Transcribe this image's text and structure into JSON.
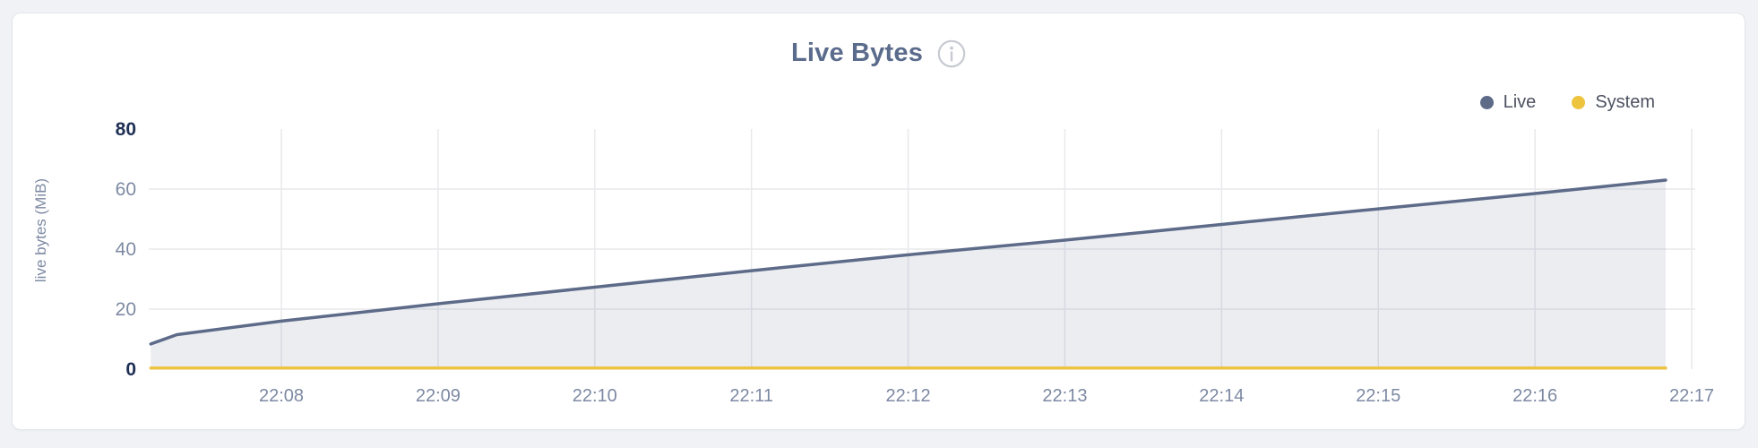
{
  "header": {
    "title": "Live Bytes"
  },
  "legend": {
    "items": [
      {
        "label": "Live",
        "color": "#5d6b89"
      },
      {
        "label": "System",
        "color": "#eec43e"
      }
    ]
  },
  "colors": {
    "page_background": "#f0f2f6",
    "card_background": "#ffffff",
    "card_border": "#e3e5ea",
    "title": "#5b6b8c",
    "info_icon": "#c7cad1"
  },
  "chart_data": {
    "type": "area",
    "title": "Live Bytes",
    "xlabel": "",
    "ylabel": "live bytes (MiB)",
    "ylim": [
      0,
      80
    ],
    "y_ticks": [
      0,
      20,
      40,
      60,
      80
    ],
    "y_ticks_emphasized": [
      0,
      80
    ],
    "x_ticks": [
      "22:08",
      "22:09",
      "22:10",
      "22:11",
      "22:12",
      "22:13",
      "22:14",
      "22:15",
      "22:16",
      "22:17"
    ],
    "grid": true,
    "grid_color": "#e8e9ec",
    "tick_colors": {
      "normal": "#7d89a3",
      "strong": "#1f3055"
    },
    "legend_position": "top-right",
    "series": [
      {
        "name": "Live",
        "color": "#5d6b89",
        "area_fill": true,
        "points": [
          [
            "22:07:10",
            8.4
          ],
          [
            "22:07:20",
            11.5
          ],
          [
            "22:08:00",
            16.0
          ],
          [
            "22:09:00",
            21.8
          ],
          [
            "22:10:00",
            27.3
          ],
          [
            "22:11:00",
            32.8
          ],
          [
            "22:12:00",
            38.1
          ],
          [
            "22:13:00",
            43.0
          ],
          [
            "22:14:00",
            48.2
          ],
          [
            "22:15:00",
            53.4
          ],
          [
            "22:16:00",
            58.5
          ],
          [
            "22:16:50",
            63.0
          ]
        ]
      },
      {
        "name": "System",
        "color": "#edc343",
        "area_fill": false,
        "points": [
          [
            "22:07:10",
            0.4
          ],
          [
            "22:16:50",
            0.4
          ]
        ]
      }
    ]
  }
}
